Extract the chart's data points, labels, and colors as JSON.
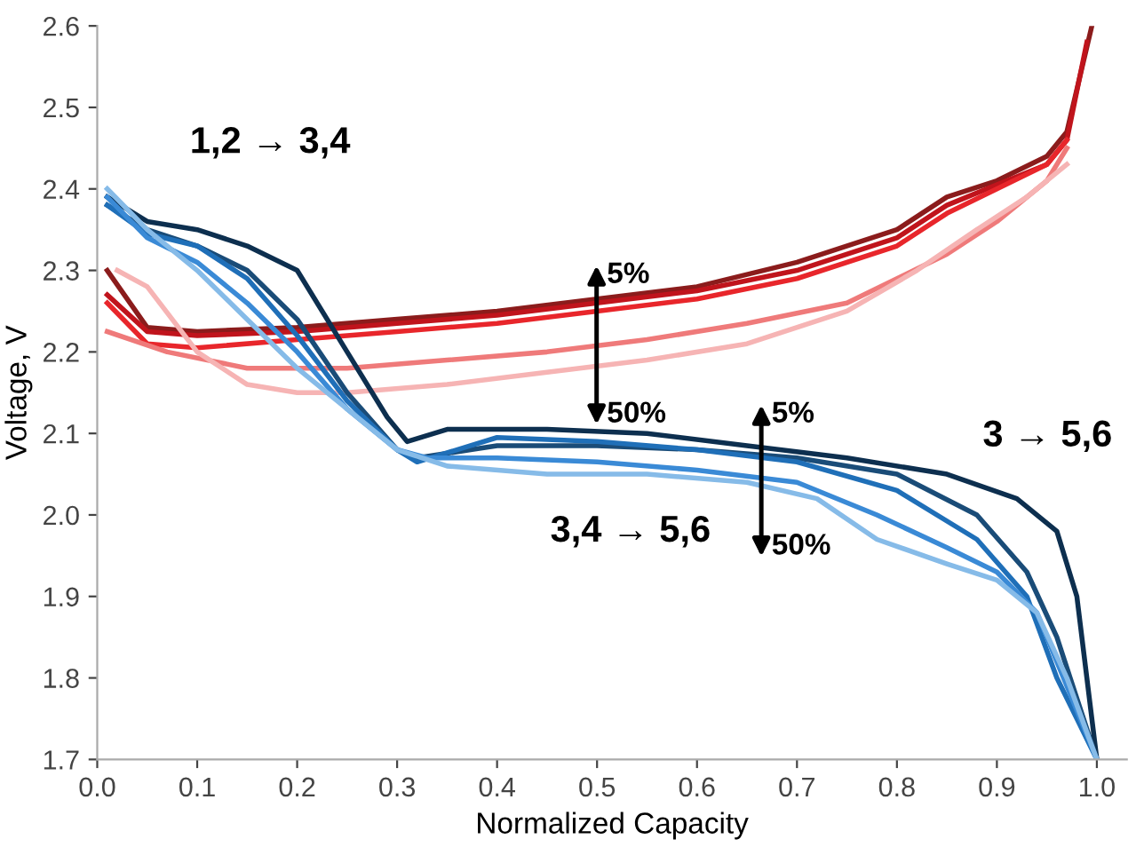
{
  "chart_data": {
    "type": "line",
    "xlabel": "Normalized Capacity",
    "ylabel": "Voltage, V",
    "xlim": [
      0,
      1.03
    ],
    "ylim": [
      1.7,
      2.6
    ],
    "xticks": [
      {
        "value": 0,
        "label": "0.0"
      },
      0.1,
      0.2,
      0.3,
      0.4,
      0.5,
      0.6,
      0.7,
      0.8,
      0.9,
      {
        "value": 1,
        "label": "1.0"
      }
    ],
    "yticks": [
      1.7,
      1.8,
      1.9,
      {
        "value": 2,
        "label": "2.0"
      },
      2.1,
      2.2,
      2.3,
      2.4,
      2.5,
      2.6
    ],
    "grid": false,
    "legend": false,
    "marker": "none",
    "line_style": "solid",
    "series": [
      {
        "color": "#8b1c1c",
        "x": [
          0.01,
          0.05,
          0.1,
          0.2,
          0.3,
          0.4,
          0.5,
          0.6,
          0.7,
          0.8,
          0.85,
          0.9,
          0.95,
          0.97,
          0.995
        ],
        "values": [
          2.3,
          2.23,
          2.225,
          2.23,
          2.24,
          2.25,
          2.265,
          2.28,
          2.31,
          2.35,
          2.39,
          2.41,
          2.44,
          2.47,
          2.6
        ]
      },
      {
        "color": "#c0141c",
        "x": [
          0.01,
          0.05,
          0.1,
          0.2,
          0.3,
          0.4,
          0.5,
          0.6,
          0.7,
          0.8,
          0.85,
          0.9,
          0.95,
          0.97,
          0.99
        ],
        "values": [
          2.27,
          2.225,
          2.22,
          2.225,
          2.235,
          2.245,
          2.26,
          2.275,
          2.3,
          2.34,
          2.38,
          2.405,
          2.43,
          2.46,
          2.58
        ]
      },
      {
        "color": "#e8262b",
        "x": [
          0.01,
          0.05,
          0.1,
          0.2,
          0.3,
          0.4,
          0.5,
          0.6,
          0.7,
          0.8,
          0.85,
          0.9,
          0.95,
          0.97
        ],
        "values": [
          2.26,
          2.21,
          2.205,
          2.215,
          2.225,
          2.235,
          2.25,
          2.265,
          2.29,
          2.33,
          2.37,
          2.4,
          2.43,
          2.46
        ]
      },
      {
        "color": "#ef7a7a",
        "x": [
          0.01,
          0.07,
          0.15,
          0.25,
          0.35,
          0.45,
          0.55,
          0.65,
          0.75,
          0.85,
          0.9,
          0.95,
          0.97
        ],
        "values": [
          2.225,
          2.2,
          2.18,
          2.18,
          2.19,
          2.2,
          2.215,
          2.235,
          2.26,
          2.32,
          2.36,
          2.41,
          2.45
        ]
      },
      {
        "color": "#f6b4b4",
        "x": [
          0.02,
          0.05,
          0.1,
          0.15,
          0.2,
          0.25,
          0.35,
          0.45,
          0.55,
          0.65,
          0.75,
          0.82,
          0.88,
          0.93,
          0.97
        ],
        "values": [
          2.3,
          2.28,
          2.2,
          2.16,
          2.15,
          2.15,
          2.16,
          2.175,
          2.19,
          2.21,
          2.25,
          2.3,
          2.35,
          2.39,
          2.43
        ]
      },
      {
        "color": "#0d2f4f",
        "x": [
          0.01,
          0.05,
          0.1,
          0.15,
          0.2,
          0.25,
          0.29,
          0.31,
          0.35,
          0.45,
          0.55,
          0.65,
          0.75,
          0.85,
          0.92,
          0.96,
          0.98,
          1.0
        ],
        "values": [
          2.39,
          2.36,
          2.35,
          2.33,
          2.3,
          2.2,
          2.12,
          2.09,
          2.105,
          2.105,
          2.1,
          2.085,
          2.07,
          2.05,
          2.02,
          1.98,
          1.9,
          1.7
        ]
      },
      {
        "color": "#1a4c78",
        "x": [
          0.01,
          0.05,
          0.1,
          0.15,
          0.2,
          0.25,
          0.3,
          0.32,
          0.4,
          0.5,
          0.6,
          0.7,
          0.8,
          0.88,
          0.93,
          0.96,
          1.0
        ],
        "values": [
          2.38,
          2.35,
          2.33,
          2.3,
          2.24,
          2.15,
          2.08,
          2.07,
          2.085,
          2.085,
          2.08,
          2.07,
          2.05,
          2.0,
          1.93,
          1.85,
          1.7
        ]
      },
      {
        "color": "#1f6fb8",
        "x": [
          0.01,
          0.05,
          0.1,
          0.15,
          0.2,
          0.25,
          0.3,
          0.32,
          0.4,
          0.5,
          0.6,
          0.7,
          0.8,
          0.88,
          0.93,
          0.96,
          1.0
        ],
        "values": [
          2.38,
          2.345,
          2.33,
          2.29,
          2.22,
          2.14,
          2.08,
          2.065,
          2.095,
          2.09,
          2.08,
          2.065,
          2.03,
          1.97,
          1.9,
          1.8,
          1.7
        ]
      },
      {
        "color": "#3a8ad6",
        "x": [
          0.01,
          0.05,
          0.1,
          0.15,
          0.2,
          0.25,
          0.3,
          0.33,
          0.4,
          0.5,
          0.6,
          0.7,
          0.78,
          0.85,
          0.9,
          0.94,
          0.97,
          1.0
        ],
        "values": [
          2.39,
          2.34,
          2.31,
          2.26,
          2.2,
          2.13,
          2.08,
          2.07,
          2.07,
          2.065,
          2.055,
          2.04,
          2.0,
          1.96,
          1.93,
          1.88,
          1.79,
          1.7
        ]
      },
      {
        "color": "#86bbe8",
        "x": [
          0.01,
          0.05,
          0.1,
          0.15,
          0.2,
          0.25,
          0.3,
          0.35,
          0.45,
          0.55,
          0.65,
          0.72,
          0.78,
          0.85,
          0.9,
          0.94,
          0.97,
          1.0
        ],
        "values": [
          2.4,
          2.35,
          2.3,
          2.24,
          2.18,
          2.13,
          2.08,
          2.06,
          2.05,
          2.05,
          2.04,
          2.02,
          1.97,
          1.94,
          1.92,
          1.88,
          1.8,
          1.7
        ]
      }
    ],
    "annotations": [
      "1,2 → 3,4",
      "3,4 → 5,6",
      "3 → 5,6",
      "5%",
      "50%",
      "5%",
      "50%"
    ]
  }
}
